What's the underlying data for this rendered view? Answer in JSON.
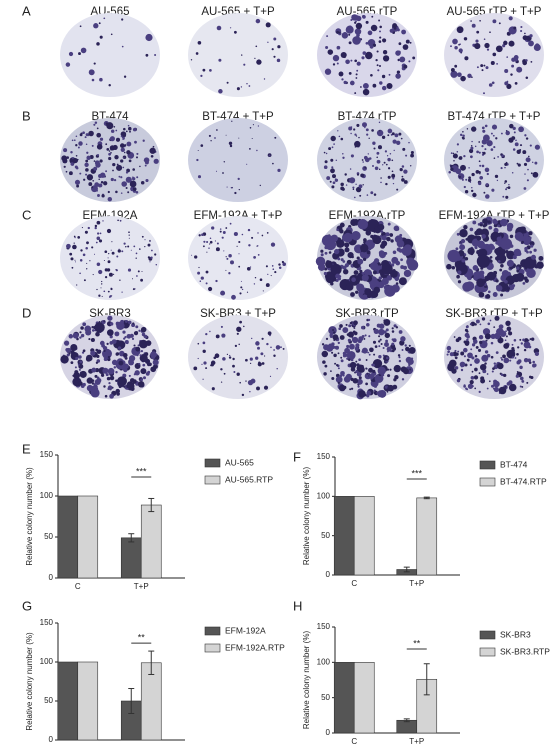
{
  "colony_panels": [
    {
      "label": "A",
      "wells": [
        "AU-565",
        "AU-565 + T+P",
        "AU-565.rTP",
        "AU-565.rTP + T+P"
      ]
    },
    {
      "label": "B",
      "wells": [
        "BT-474",
        "BT-474 + T+P",
        "BT-474.rTP",
        "BT-474.rTP + T+P"
      ]
    },
    {
      "label": "C",
      "wells": [
        "EFM-192A",
        "EFM-192A + T+P",
        "EFM-192A.rTP",
        "EFM-192A.rTP + T+P"
      ]
    },
    {
      "label": "D",
      "wells": [
        "SK-BR3",
        "SK-BR3 + T+P",
        "SK-BR3.rTP",
        "SK-BR3.rTP + T+P"
      ]
    }
  ],
  "chart_data": [
    {
      "type": "bar",
      "panel": "E",
      "y_label": "Relative colony number (%)",
      "categories": [
        "C",
        "T+P"
      ],
      "series": [
        {
          "name": "AU-565",
          "color": "#555555",
          "values": [
            100,
            49
          ],
          "errors": [
            0,
            5
          ]
        },
        {
          "name": "AU-565.RTP",
          "color": "#d4d4d4",
          "values": [
            100,
            89
          ],
          "errors": [
            0,
            8
          ]
        }
      ],
      "significance": "***",
      "ylim": [
        0,
        150
      ],
      "yticks": [
        0,
        50,
        100,
        150
      ]
    },
    {
      "type": "bar",
      "panel": "F",
      "y_label": "Relative colony number (%)",
      "categories": [
        "C",
        "T+P"
      ],
      "series": [
        {
          "name": "BT-474",
          "color": "#555555",
          "values": [
            100,
            7
          ],
          "errors": [
            0,
            3
          ]
        },
        {
          "name": "BT-474.RTP",
          "color": "#d4d4d4",
          "values": [
            100,
            98
          ],
          "errors": [
            0,
            1
          ]
        }
      ],
      "significance": "***",
      "ylim": [
        0,
        150
      ],
      "yticks": [
        0,
        50,
        100,
        150
      ]
    },
    {
      "type": "bar",
      "panel": "G",
      "y_label": "Relative colony number (%)",
      "categories": [
        "C",
        "T+P"
      ],
      "series": [
        {
          "name": "EFM-192A",
          "color": "#555555",
          "values": [
            100,
            50
          ],
          "errors": [
            0,
            16
          ]
        },
        {
          "name": "EFM-192A.RTP",
          "color": "#d4d4d4",
          "values": [
            100,
            99
          ],
          "errors": [
            0,
            15
          ]
        }
      ],
      "significance": "**",
      "ylim": [
        0,
        150
      ],
      "yticks": [
        0,
        50,
        100,
        150
      ]
    },
    {
      "type": "bar",
      "panel": "H",
      "y_label": "Relative colony number (%)",
      "categories": [
        "C",
        "T+P"
      ],
      "series": [
        {
          "name": "SK-BR3",
          "color": "#555555",
          "values": [
            100,
            18
          ],
          "errors": [
            0,
            2
          ]
        },
        {
          "name": "SK-BR3.RTP",
          "color": "#d4d4d4",
          "values": [
            100,
            76
          ],
          "errors": [
            0,
            22
          ]
        }
      ],
      "significance": "**",
      "ylim": [
        0,
        150
      ],
      "yticks": [
        0,
        50,
        100,
        150
      ]
    }
  ]
}
